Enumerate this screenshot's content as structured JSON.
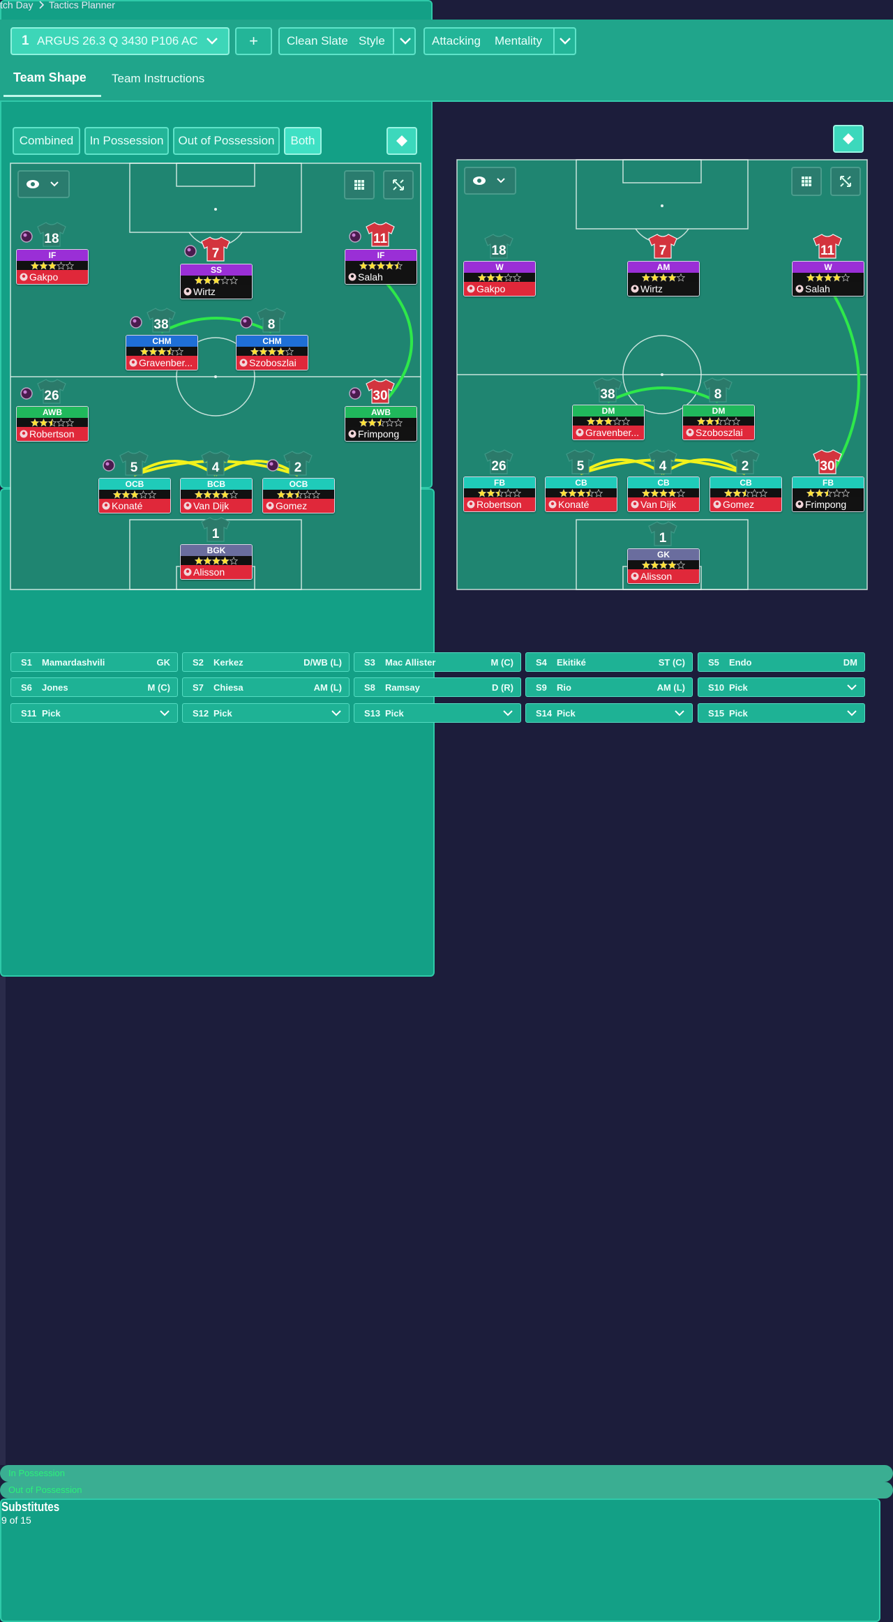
{
  "breadcrumb": {
    "items": [
      "tch Day",
      "Tactics Planner"
    ]
  },
  "toolbar": {
    "tactic_slot": "1",
    "tactic_name": "ARGUS 26.3 Q 3430 P106 AC",
    "add": "+",
    "style": {
      "value": "Clean Slate",
      "label": "Style"
    },
    "mentality": {
      "value": "Attacking",
      "label": "Mentality"
    }
  },
  "tabs": {
    "items": [
      "Team Shape",
      "Team Instructions"
    ],
    "active": 0
  },
  "phase_filter": {
    "items": [
      "Combined",
      "In Possession",
      "Out of Possession",
      "Both"
    ],
    "active": 3
  },
  "pitches": [
    {
      "label": "In Possession",
      "players": [
        {
          "number": 18,
          "role": "IF",
          "color": "#9a2fd6",
          "rating": 3,
          "name": "Gakpo",
          "card": "red"
        },
        {
          "number": 7,
          "role": "SS",
          "color": "#9a2fd6",
          "rating": 3,
          "name": "Wirtz",
          "card": "black"
        },
        {
          "number": 11,
          "role": "IF",
          "color": "#9a2fd6",
          "rating": 4.5,
          "name": "Salah",
          "card": "black"
        },
        {
          "number": 38,
          "role": "CHM",
          "color": "#1f6fd6",
          "rating": 3.5,
          "name": "Gravenber...",
          "card": "red"
        },
        {
          "number": 8,
          "role": "CHM",
          "color": "#1f6fd6",
          "rating": 4,
          "name": "Szoboszlai",
          "card": "red"
        },
        {
          "number": 26,
          "role": "AWB",
          "color": "#20b85c",
          "rating": 2.5,
          "name": "Robertson",
          "card": "red"
        },
        {
          "number": 30,
          "role": "AWB",
          "color": "#20b85c",
          "rating": 2.5,
          "name": "Frimpong",
          "card": "black"
        },
        {
          "number": 5,
          "role": "OCB",
          "color": "#1fcbb9",
          "rating": 3,
          "name": "Konaté",
          "card": "red"
        },
        {
          "number": 4,
          "role": "BCB",
          "color": "#1fcbb9",
          "rating": 4,
          "name": "Van Dijk",
          "card": "red"
        },
        {
          "number": 2,
          "role": "OCB",
          "color": "#1fcbb9",
          "rating": 2.5,
          "name": "Gomez",
          "card": "red"
        },
        {
          "number": 1,
          "role": "BGK",
          "color": "#6a6d9e",
          "rating": 4,
          "name": "Alisson",
          "card": "red"
        }
      ]
    },
    {
      "label": "Out of Possession",
      "players": [
        {
          "number": 18,
          "role": "W",
          "color": "#9a2fd6",
          "rating": 3,
          "name": "Gakpo",
          "card": "red"
        },
        {
          "number": 7,
          "role": "AM",
          "color": "#9a2fd6",
          "rating": 4,
          "name": "Wirtz",
          "card": "black"
        },
        {
          "number": 11,
          "role": "W",
          "color": "#9a2fd6",
          "rating": 4,
          "name": "Salah",
          "card": "black"
        },
        {
          "number": 38,
          "role": "DM",
          "color": "#20b85c",
          "rating": 3,
          "name": "Gravenber...",
          "card": "red"
        },
        {
          "number": 8,
          "role": "DM",
          "color": "#20b85c",
          "rating": 2.5,
          "name": "Szoboszlai",
          "card": "red"
        },
        {
          "number": 26,
          "role": "FB",
          "color": "#1fcbb9",
          "rating": 2.5,
          "name": "Robertson",
          "card": "red"
        },
        {
          "number": 30,
          "role": "FB",
          "color": "#1fcbb9",
          "rating": 2.5,
          "name": "Frimpong",
          "card": "black"
        },
        {
          "number": 5,
          "role": "CB",
          "color": "#1fcbb9",
          "rating": 3.5,
          "name": "Konaté",
          "card": "red"
        },
        {
          "number": 4,
          "role": "CB",
          "color": "#1fcbb9",
          "rating": 4,
          "name": "Van Dijk",
          "card": "red"
        },
        {
          "number": 2,
          "role": "CB",
          "color": "#1fcbb9",
          "rating": 2.5,
          "name": "Gomez",
          "card": "red"
        },
        {
          "number": 1,
          "role": "GK",
          "color": "#6a6d9e",
          "rating": 4,
          "name": "Alisson",
          "card": "red"
        }
      ]
    }
  ],
  "substitutes": {
    "title": "Substitutes",
    "count": "9 of 15",
    "slots": [
      {
        "slot": "S1",
        "name": "Mamardashvili",
        "position": "GK"
      },
      {
        "slot": "S2",
        "name": "Kerkez",
        "position": "D/WB (L)"
      },
      {
        "slot": "S3",
        "name": "Mac Allister",
        "position": "M (C)"
      },
      {
        "slot": "S4",
        "name": "Ekitiké",
        "position": "ST (C)"
      },
      {
        "slot": "S5",
        "name": "Endo",
        "position": "DM"
      },
      {
        "slot": "S6",
        "name": "Jones",
        "position": "M (C)"
      },
      {
        "slot": "S7",
        "name": "Chiesa",
        "position": "AM (L)"
      },
      {
        "slot": "S8",
        "name": "Ramsay",
        "position": "D (R)"
      },
      {
        "slot": "S9",
        "name": "Rio",
        "position": "AM (L)"
      },
      {
        "slot": "S10",
        "name": "Pick",
        "dropdown": true
      },
      {
        "slot": "S11",
        "name": "Pick",
        "dropdown": true
      },
      {
        "slot": "S12",
        "name": "Pick",
        "dropdown": true
      },
      {
        "slot": "S13",
        "name": "Pick",
        "dropdown": true
      },
      {
        "slot": "S14",
        "name": "Pick",
        "dropdown": true
      },
      {
        "slot": "S15",
        "name": "Pick",
        "dropdown": true
      }
    ]
  }
}
